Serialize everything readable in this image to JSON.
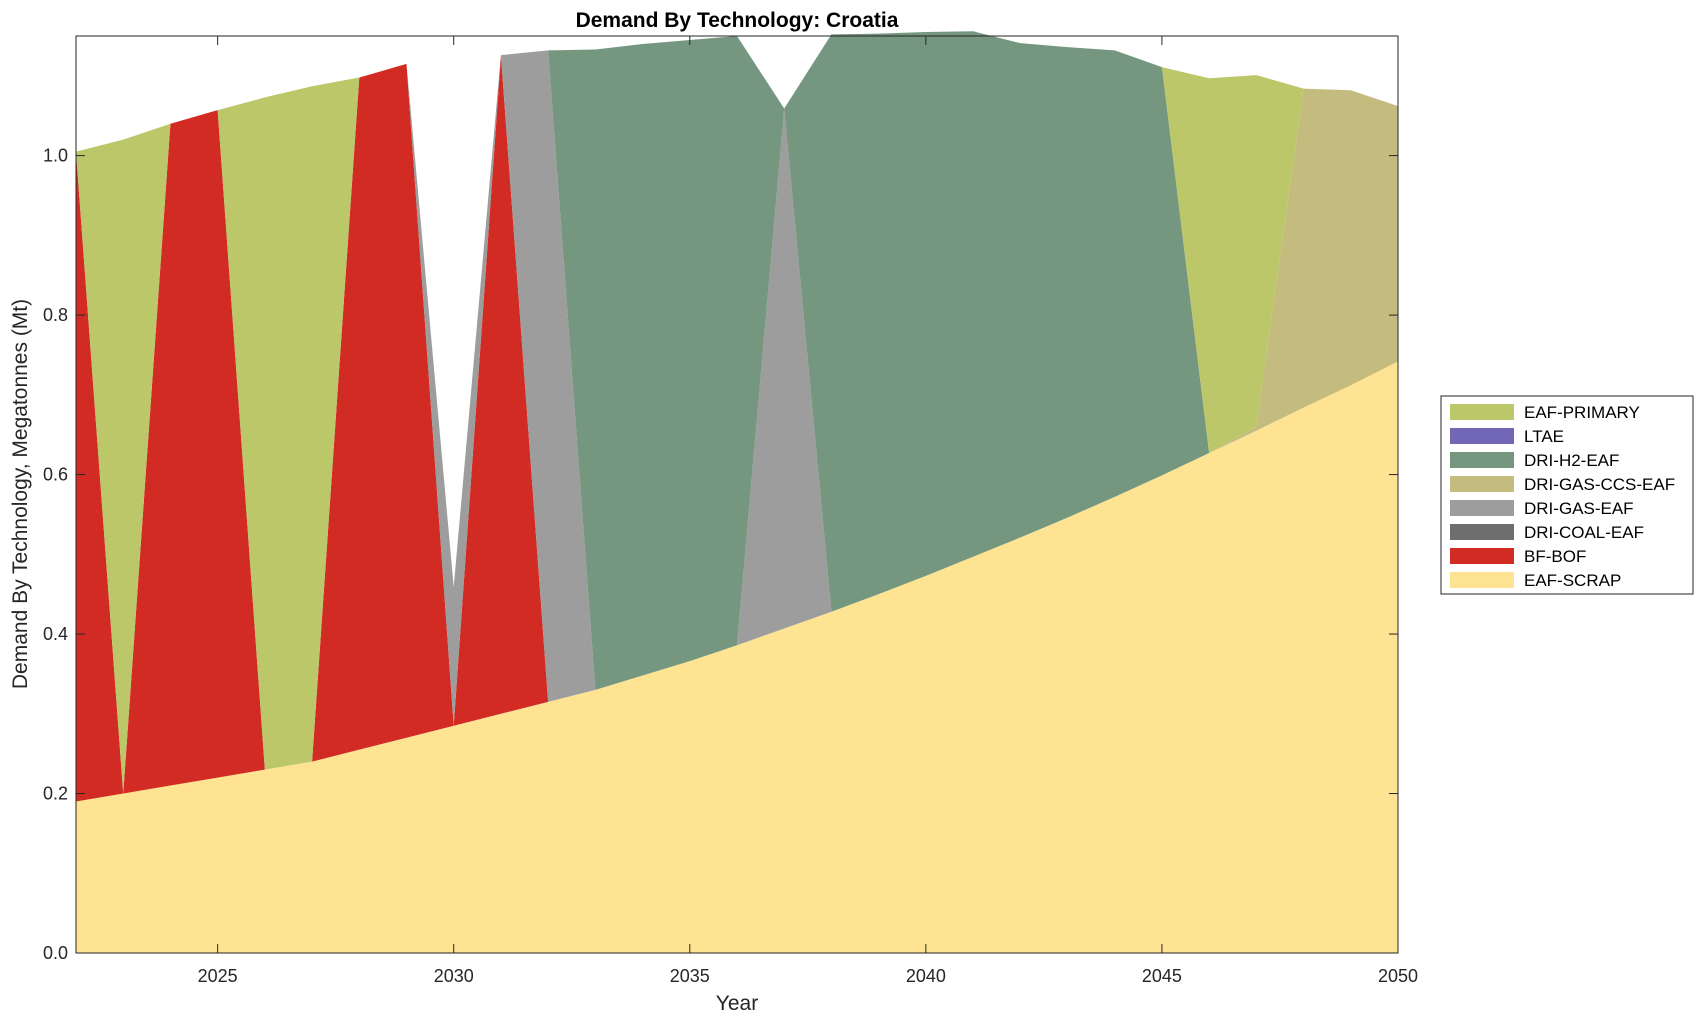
{
  "chart_data": {
    "type": "area",
    "title": "Demand By Technology: Croatia",
    "xlabel": "Year",
    "ylabel": "Demand By Technology, Megatonnes (Mt)",
    "xlim": [
      2022,
      2050
    ],
    "ylim": [
      0,
      1.15
    ],
    "xticks": [
      2025,
      2030,
      2035,
      2040,
      2045,
      2050
    ],
    "yticks": [
      0,
      0.2,
      0.4,
      0.6,
      0.8,
      1.0
    ],
    "ytick_labels": [
      "0.0",
      "0.2",
      "0.4",
      "0.6",
      "0.8",
      "1.0"
    ],
    "grid": false,
    "legend_position": "right",
    "legend_order": [
      "EAF-PRIMARY",
      "LTAE",
      "DRI-H2-EAF",
      "DRI-GAS-CCS-EAF",
      "DRI-GAS-EAF",
      "DRI-COAL-EAF",
      "BF-BOF",
      "EAF-SCRAP"
    ],
    "x": [
      2022,
      2023,
      2024,
      2025,
      2026,
      2027,
      2028,
      2029,
      2030,
      2031,
      2032,
      2033,
      2034,
      2035,
      2036,
      2037,
      2038,
      2039,
      2040,
      2041,
      2042,
      2043,
      2044,
      2045,
      2046,
      2047,
      2048,
      2049,
      2050
    ],
    "series": [
      {
        "name": "EAF-SCRAP",
        "color": "#FDE392",
        "values": [
          0.19,
          0.2,
          0.21,
          0.22,
          0.23,
          0.24,
          0.255,
          0.27,
          0.285,
          0.3,
          0.315,
          0.33,
          0.348,
          0.366,
          0.386,
          0.407,
          0.428,
          0.45,
          0.473,
          0.497,
          0.521,
          0.546,
          0.572,
          0.599,
          0.627,
          0.655,
          0.684,
          0.712,
          0.742
        ]
      },
      {
        "name": "BF-BOF",
        "color": "#D22B23",
        "values": [
          0.815,
          0,
          0.83,
          0.837,
          0,
          0,
          0.843,
          0.845,
          0,
          0.826,
          0,
          0,
          0,
          0,
          0,
          0,
          0,
          0,
          0,
          0,
          0,
          0,
          0,
          0,
          0,
          0,
          0,
          0,
          0
        ]
      },
      {
        "name": "DRI-COAL-EAF",
        "color": "#6E6E6E",
        "values": [
          0,
          0,
          0,
          0,
          0,
          0,
          0,
          0,
          0,
          0,
          0,
          0,
          0,
          0,
          0,
          0,
          0,
          0,
          0,
          0,
          0,
          0,
          0,
          0,
          0,
          0,
          0,
          0,
          0
        ]
      },
      {
        "name": "DRI-GAS-EAF",
        "color": "#9D9D9D",
        "values": [
          0,
          0,
          0,
          0,
          0,
          0,
          0,
          0,
          0.174,
          0,
          0.817,
          0,
          0,
          0,
          0,
          0.652,
          0,
          0,
          0,
          0,
          0,
          0,
          0,
          0,
          0,
          0,
          0,
          0,
          0
        ]
      },
      {
        "name": "DRI-GAS-CCS-EAF",
        "color": "#C4BB7E",
        "values": [
          0,
          0,
          0,
          0,
          0,
          0,
          0,
          0,
          0,
          0,
          0,
          0,
          0,
          0,
          0,
          0,
          0,
          0,
          0,
          0,
          0,
          0,
          0,
          0,
          0,
          0.005,
          0.4,
          0.37,
          0.32
        ]
      },
      {
        "name": "DRI-H2-EAF",
        "color": "#75977F",
        "values": [
          0,
          0,
          0,
          0,
          0,
          0,
          0,
          0,
          0,
          0,
          0,
          0.803,
          0.792,
          0.779,
          0.764,
          0,
          0.724,
          0.703,
          0.682,
          0.659,
          0.62,
          0.59,
          0.56,
          0.512,
          0,
          0,
          0,
          0,
          0
        ]
      },
      {
        "name": "LTAE",
        "color": "#7266B7",
        "values": [
          0,
          0,
          0,
          0,
          0,
          0,
          0,
          0,
          0,
          0,
          0,
          0,
          0,
          0,
          0,
          0,
          0,
          0,
          0,
          0,
          0,
          0,
          0,
          0,
          0,
          0,
          0,
          0,
          0
        ]
      },
      {
        "name": "EAF-PRIMARY",
        "color": "#BCC76A",
        "values": [
          0,
          0.82,
          0,
          0,
          0.843,
          0.847,
          0,
          0,
          0,
          0,
          0,
          0,
          0,
          0,
          0,
          0,
          0,
          0,
          0,
          0,
          0,
          0,
          0,
          0,
          0.47,
          0.441,
          0,
          0,
          0
        ]
      }
    ]
  }
}
